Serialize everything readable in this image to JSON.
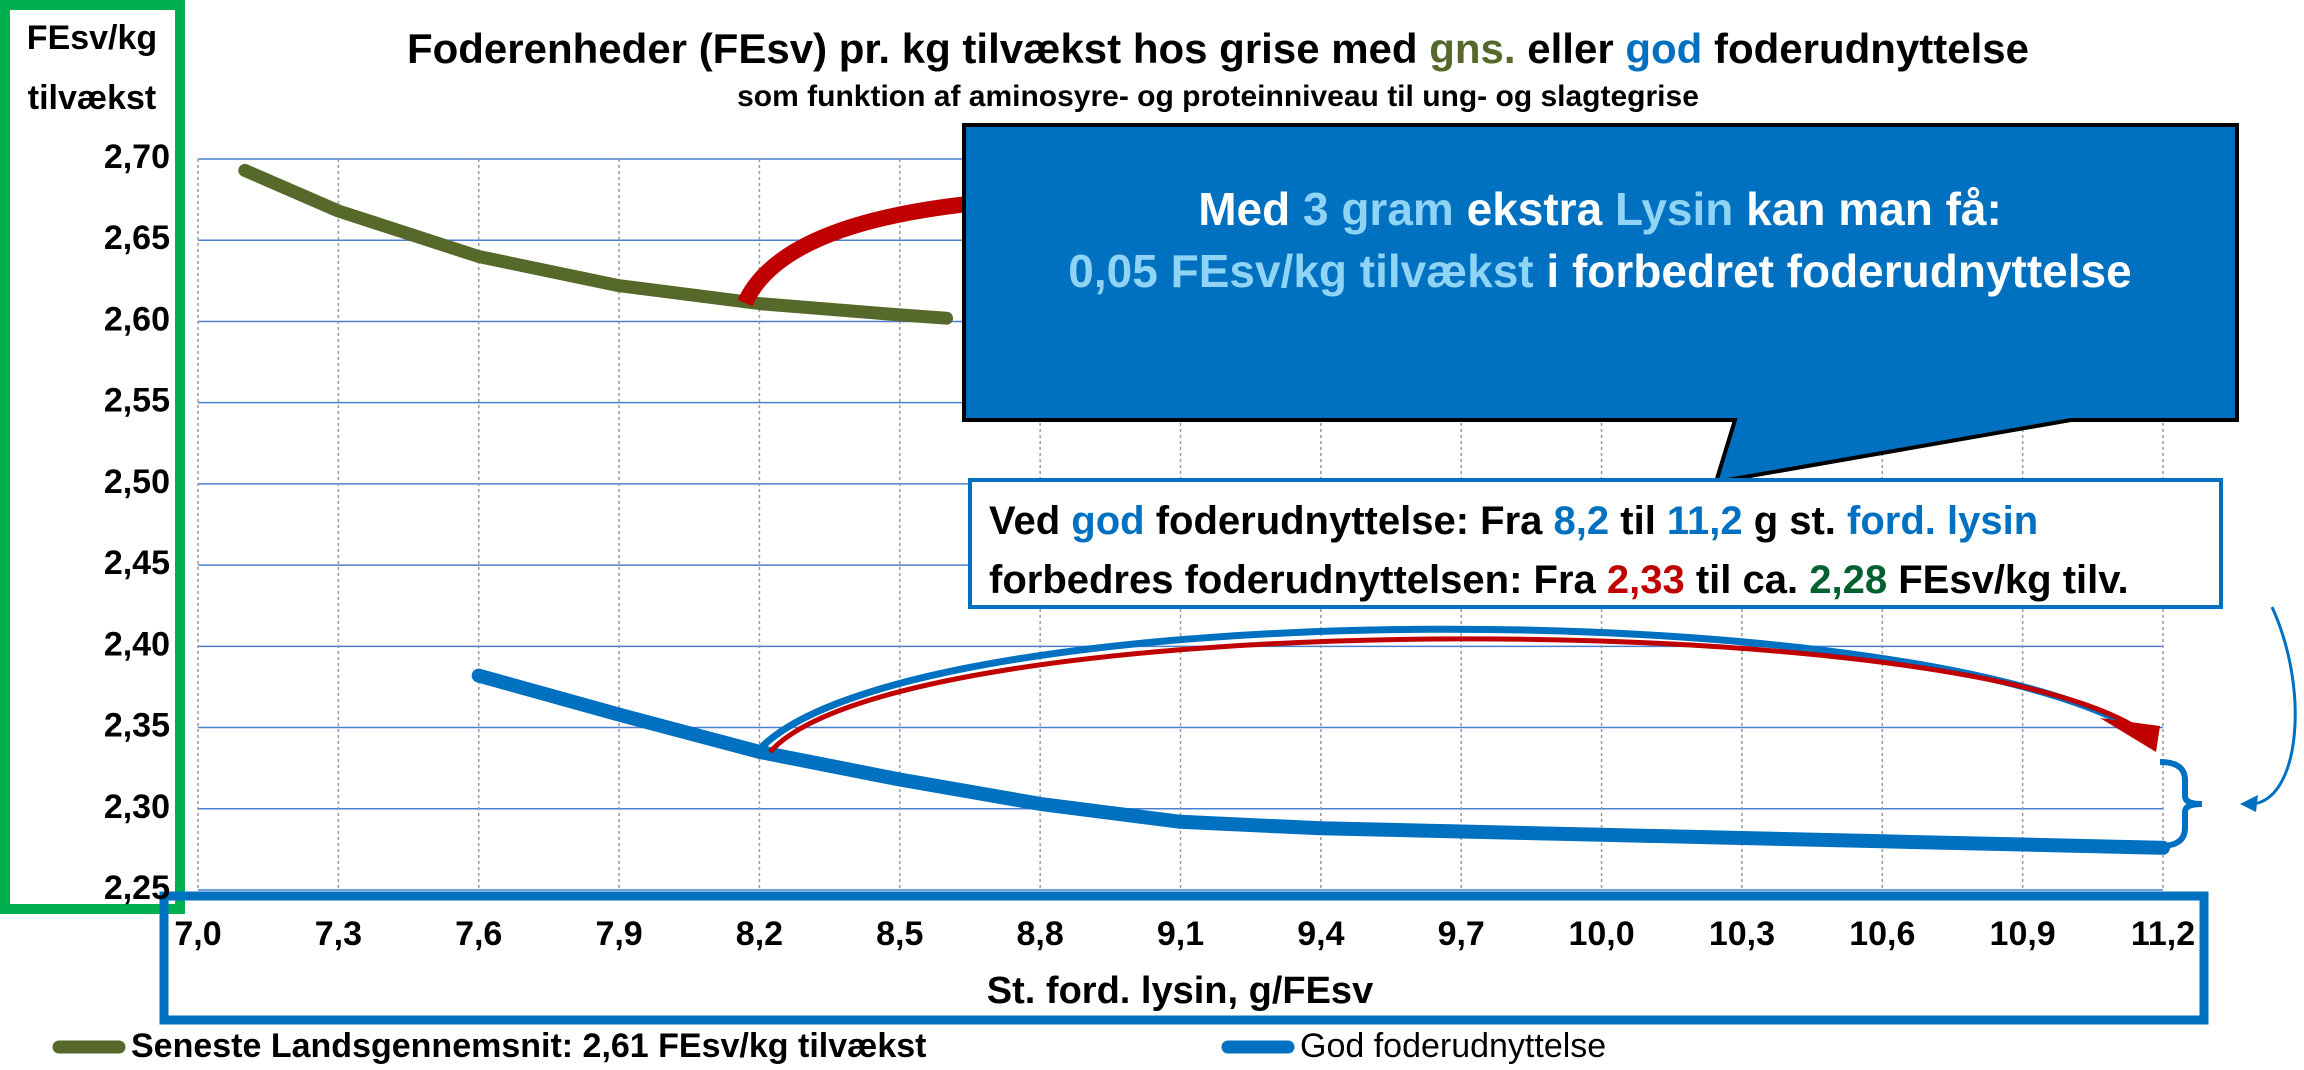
{
  "chart_data": {
    "type": "line",
    "title": [
      {
        "text": "Foderenheder (FEsv) pr. kg tilvækst hos grise med ",
        "color": "#000000"
      },
      {
        "text": "gns.",
        "color": "#56692b"
      },
      {
        "text": " eller ",
        "color": "#000000"
      },
      {
        "text": "god",
        "color": "#0070c0"
      },
      {
        "text": " foderudnyttelse",
        "color": "#000000"
      }
    ],
    "subtitle": "som funktion af aminosyre- og proteinniveau til ung- og slagtegrise",
    "y_label": [
      "FEsv/kg",
      "tilvækst"
    ],
    "x_label": "St. ford. lysin, g/FEsv",
    "xlim": [
      7.0,
      11.2
    ],
    "xticks": [
      {
        "value": 7.0,
        "label": "7,0"
      },
      {
        "value": 7.3,
        "label": "7,3"
      },
      {
        "value": 7.6,
        "label": "7,6"
      },
      {
        "value": 7.9,
        "label": "7,9"
      },
      {
        "value": 8.2,
        "label": "8,2"
      },
      {
        "value": 8.5,
        "label": "8,5"
      },
      {
        "value": 8.8,
        "label": "8,8"
      },
      {
        "value": 9.1,
        "label": "9,1"
      },
      {
        "value": 9.4,
        "label": "9,4"
      },
      {
        "value": 9.7,
        "label": "9,7"
      },
      {
        "value": 10.0,
        "label": "10,0"
      },
      {
        "value": 10.3,
        "label": "10,3"
      },
      {
        "value": 10.6,
        "label": "10,6"
      },
      {
        "value": 10.9,
        "label": "10,9"
      },
      {
        "value": 11.2,
        "label": "11,2"
      }
    ],
    "ylim": [
      2.25,
      2.7
    ],
    "yticks": [
      {
        "value": 2.25,
        "label": "2,25"
      },
      {
        "value": 2.3,
        "label": "2,30"
      },
      {
        "value": 2.35,
        "label": "2,35"
      },
      {
        "value": 2.4,
        "label": "2,40"
      },
      {
        "value": 2.45,
        "label": "2,45"
      },
      {
        "value": 2.5,
        "label": "2,50"
      },
      {
        "value": 2.55,
        "label": "2,55"
      },
      {
        "value": 2.6,
        "label": "2,60"
      },
      {
        "value": 2.65,
        "label": "2,65"
      },
      {
        "value": 2.7,
        "label": "2,70"
      }
    ],
    "grid": true,
    "series": [
      {
        "name": "Seneste Landsgennemsnit: 2,61 FEsv/kg tilvækst",
        "color": "#56692b",
        "x": [
          7.1,
          7.3,
          7.6,
          7.9,
          8.2,
          8.5,
          8.6
        ],
        "values": [
          2.693,
          2.668,
          2.64,
          2.622,
          2.611,
          2.604,
          2.602
        ]
      },
      {
        "name": "God foderudnyttelse",
        "color": "#0070c0",
        "x": [
          7.6,
          7.9,
          8.2,
          8.5,
          8.8,
          9.1,
          9.4,
          9.7,
          10.0,
          10.3,
          10.6,
          10.9,
          11.2
        ],
        "values": [
          2.382,
          2.358,
          2.335,
          2.318,
          2.303,
          2.292,
          2.288,
          2.286,
          2.284,
          2.282,
          2.28,
          2.278,
          2.276
        ]
      }
    ],
    "annotations": [
      {
        "lines": [
          [
            {
              "text": "Med ",
              "color": "#ffffff"
            },
            {
              "text": "3 gram",
              "color": "#8fd3f5"
            },
            {
              "text": " ekstra ",
              "color": "#ffffff"
            },
            {
              "text": "Lysin",
              "color": "#8fd3f5"
            },
            {
              "text": " kan man få:",
              "color": "#ffffff"
            }
          ],
          [
            {
              "text": "0,05 FEsv/kg tilvækst",
              "color": "#8fd3f5"
            },
            {
              "text": " i forbedret foderudnyttelse",
              "color": "#ffffff"
            }
          ]
        ]
      },
      {
        "lines": [
          [
            {
              "text": "Ved ",
              "color": "#000000"
            },
            {
              "text": "god",
              "color": "#0070c0"
            },
            {
              "text": " foderudnyttelse: Fra ",
              "color": "#000000"
            },
            {
              "text": "8,2",
              "color": "#0070c0"
            },
            {
              "text": " til ",
              "color": "#000000"
            },
            {
              "text": "11,2",
              "color": "#0070c0"
            },
            {
              "text": " g st. ",
              "color": "#000000"
            },
            {
              "text": "ford. lysin",
              "color": "#0070c0"
            }
          ],
          [
            {
              "text": "forbedres foderudnyttelsen: Fra ",
              "color": "#000000"
            },
            {
              "text": "2,33",
              "color": "#c00000"
            },
            {
              "text": " til ca. ",
              "color": "#000000"
            },
            {
              "text": "2,28",
              "color": "#006030"
            },
            {
              "text": " FEsv/kg tilv.",
              "color": "#000000"
            }
          ]
        ]
      }
    ]
  }
}
